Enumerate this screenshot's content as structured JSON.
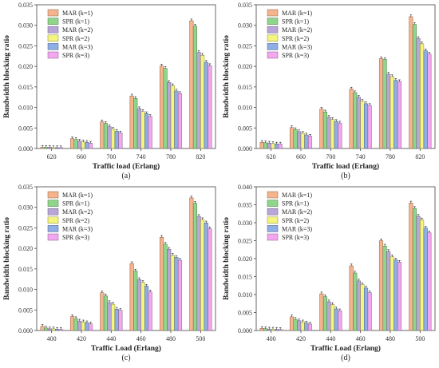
{
  "legend": [
    "MAR (k=1)",
    "SPR (k=1)",
    "MAR (k=2)",
    "SPR (k=2)",
    "MAR (k=3)",
    "SPR (k=3)"
  ],
  "colors": [
    "#f5b48c",
    "#8fd68a",
    "#b9a6d8",
    "#f4f47e",
    "#8eaee6",
    "#f3a7f0"
  ],
  "chart_data": [
    {
      "type": "bar",
      "caption": "(a)",
      "xlabel": "Traffic load (Erlang)",
      "ylabel": "Bandwidth blocking ratio",
      "ylim": [
        0,
        0.035
      ],
      "yticks": [
        "0.000",
        "0.005",
        "0.010",
        "0.015",
        "0.020",
        "0.025",
        "0.030",
        "0.035"
      ],
      "categories": [
        "620",
        "660",
        "700",
        "740",
        "780",
        "820"
      ],
      "series": [
        {
          "name": "MAR (k=1)",
          "values": [
            0.0003,
            0.0024,
            0.0065,
            0.0128,
            0.0201,
            0.0311
          ]
        },
        {
          "name": "SPR (k=1)",
          "values": [
            0.0003,
            0.0022,
            0.0061,
            0.0122,
            0.0195,
            0.0298
          ]
        },
        {
          "name": "MAR (k=2)",
          "values": [
            0.0003,
            0.0018,
            0.0053,
            0.0097,
            0.0161,
            0.0234
          ]
        },
        {
          "name": "SPR (k=2)",
          "values": [
            0.0002,
            0.0016,
            0.0047,
            0.009,
            0.0153,
            0.0227
          ]
        },
        {
          "name": "MAR (k=3)",
          "values": [
            0.0002,
            0.0015,
            0.0042,
            0.0085,
            0.014,
            0.021
          ]
        },
        {
          "name": "SPR (k=3)",
          "values": [
            0.0002,
            0.0013,
            0.0038,
            0.0078,
            0.0134,
            0.0202
          ]
        }
      ]
    },
    {
      "type": "bar",
      "caption": "(b)",
      "xlabel": "Traffic load (Erlang)",
      "ylabel": "Bandwidth blocking ratio",
      "ylim": [
        0,
        0.035
      ],
      "yticks": [
        "0.000",
        "0.005",
        "0.010",
        "0.015",
        "0.020",
        "0.025",
        "0.030",
        "0.035"
      ],
      "categories": [
        "620",
        "660",
        "700",
        "740",
        "780",
        "820"
      ],
      "series": [
        {
          "name": "MAR (k=1)",
          "values": [
            0.0015,
            0.0051,
            0.0096,
            0.0145,
            0.0219,
            0.0321
          ]
        },
        {
          "name": "SPR (k=1)",
          "values": [
            0.0014,
            0.0046,
            0.0089,
            0.0136,
            0.0217,
            0.0302
          ]
        },
        {
          "name": "MAR (k=2)",
          "values": [
            0.0013,
            0.0041,
            0.0076,
            0.0125,
            0.0181,
            0.0268
          ]
        },
        {
          "name": "SPR (k=2)",
          "values": [
            0.0012,
            0.0037,
            0.0071,
            0.0115,
            0.0175,
            0.0255
          ]
        },
        {
          "name": "MAR (k=3)",
          "values": [
            0.0011,
            0.0033,
            0.0066,
            0.0109,
            0.0166,
            0.0238
          ]
        },
        {
          "name": "SPR (k=3)",
          "values": [
            0.0011,
            0.003,
            0.0062,
            0.0105,
            0.0163,
            0.023
          ]
        }
      ]
    },
    {
      "type": "bar",
      "caption": "(c)",
      "xlabel": "Traffic Load (Erlang)",
      "ylabel": "Bandwidth blocking ratio",
      "ylim": [
        0,
        0.035
      ],
      "yticks": [
        "0.000",
        "0.005",
        "0.010",
        "0.015",
        "0.020",
        "0.025",
        "0.030",
        "0.035"
      ],
      "categories": [
        "400",
        "420",
        "440",
        "460",
        "480",
        "500"
      ],
      "series": [
        {
          "name": "MAR (k=1)",
          "values": [
            0.001,
            0.0034,
            0.0092,
            0.0163,
            0.0227,
            0.0323
          ]
        },
        {
          "name": "SPR (k=1)",
          "values": [
            0.0006,
            0.0029,
            0.0084,
            0.0145,
            0.021,
            0.031
          ]
        },
        {
          "name": "MAR (k=2)",
          "values": [
            0.0004,
            0.0023,
            0.0068,
            0.0124,
            0.0198,
            0.0278
          ]
        },
        {
          "name": "SPR (k=2)",
          "values": [
            0.0004,
            0.0021,
            0.0064,
            0.0117,
            0.0183,
            0.027
          ]
        },
        {
          "name": "MAR (k=3)",
          "values": [
            0.0003,
            0.0019,
            0.0052,
            0.0108,
            0.0178,
            0.0262
          ]
        },
        {
          "name": "SPR (k=3)",
          "values": [
            0.0003,
            0.0016,
            0.0049,
            0.0094,
            0.0171,
            0.0248
          ]
        }
      ]
    },
    {
      "type": "bar",
      "caption": "(d)",
      "xlabel": "Traffic Load (Erlang)",
      "ylabel": "Bandwidth blocking ratio",
      "ylim": [
        0,
        0.04
      ],
      "yticks": [
        "0.000",
        "0.005",
        "0.010",
        "0.015",
        "0.020",
        "0.025",
        "0.030",
        "0.035",
        "0.040"
      ],
      "categories": [
        "400",
        "420",
        "440",
        "460",
        "480",
        "500"
      ],
      "series": [
        {
          "name": "MAR (k=1)",
          "values": [
            0.0006,
            0.0038,
            0.0102,
            0.018,
            0.025,
            0.0355
          ]
        },
        {
          "name": "SPR (k=1)",
          "values": [
            0.0005,
            0.0031,
            0.0094,
            0.016,
            0.0235,
            0.034
          ]
        },
        {
          "name": "MAR (k=2)",
          "values": [
            0.0004,
            0.0027,
            0.008,
            0.0138,
            0.022,
            0.0318
          ]
        },
        {
          "name": "SPR (k=2)",
          "values": [
            0.0004,
            0.0024,
            0.0072,
            0.0128,
            0.0205,
            0.0308
          ]
        },
        {
          "name": "MAR (k=3)",
          "values": [
            0.0003,
            0.0021,
            0.006,
            0.0118,
            0.0196,
            0.0285
          ]
        },
        {
          "name": "SPR (k=3)",
          "values": [
            0.0003,
            0.0018,
            0.0055,
            0.0105,
            0.019,
            0.0272
          ]
        }
      ]
    }
  ]
}
